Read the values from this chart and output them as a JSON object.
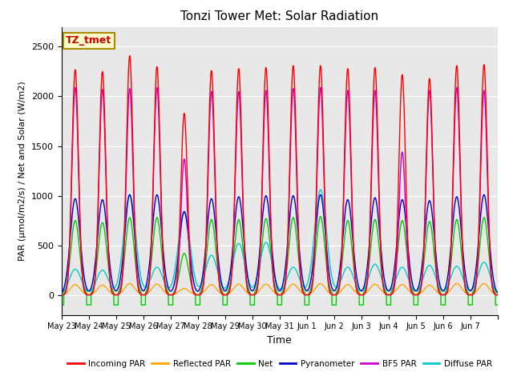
{
  "title": "Tonzi Tower Met: Solar Radiation",
  "ylabel": "PAR (μmol/m2/s) / Net and Solar (W/m2)",
  "xlabel": "Time",
  "ylim": [
    -200,
    2700
  ],
  "bg_color": "#e8e8e8",
  "legend_label": "TZ_tmet",
  "series_colors": {
    "incoming": "#ff0000",
    "reflected": "#ffa500",
    "net": "#00cc00",
    "pyranometer": "#0000cc",
    "bf5": "#cc00cc",
    "diffuse": "#00cccc"
  },
  "legend_entries": [
    "Incoming PAR",
    "Reflected PAR",
    "Net",
    "Pyranometer",
    "BF5 PAR",
    "Diffuse PAR"
  ],
  "legend_colors": [
    "#ff0000",
    "#ffa500",
    "#00cc00",
    "#0000cc",
    "#cc00cc",
    "#00cccc"
  ],
  "n_days": 16,
  "x_labels": [
    "May 23",
    "May 24",
    "May 25",
    "May 26",
    "May 27",
    "May 28",
    "May 29",
    "May 30",
    "May 31",
    "Jun 1",
    "Jun 2",
    "Jun 3",
    "Jun 4",
    "Jun 5",
    "Jun 6",
    "Jun 7"
  ],
  "peak_incoming": [
    2270,
    2250,
    2410,
    2300,
    1830,
    2260,
    2280,
    2290,
    2310,
    2310,
    2280,
    2290,
    2220,
    2180,
    2310,
    2320
  ],
  "peak_bf5": [
    2090,
    2070,
    2080,
    2090,
    1370,
    2050,
    2050,
    2060,
    2080,
    2090,
    2060,
    2060,
    1440,
    2060,
    2090,
    2060
  ],
  "peak_pyranometer": [
    970,
    960,
    1010,
    1010,
    840,
    970,
    990,
    1000,
    1000,
    1010,
    960,
    980,
    960,
    950,
    990,
    1010
  ],
  "peak_net": [
    750,
    730,
    780,
    780,
    420,
    760,
    760,
    770,
    780,
    790,
    750,
    760,
    750,
    740,
    760,
    780
  ],
  "peak_reflected": [
    105,
    100,
    115,
    110,
    65,
    105,
    110,
    110,
    110,
    115,
    105,
    110,
    105,
    100,
    115,
    115
  ],
  "peak_diffuse": [
    260,
    250,
    1010,
    280,
    840,
    400,
    520,
    530,
    280,
    1060,
    280,
    310,
    280,
    300,
    290,
    330
  ],
  "night_net": -100,
  "day_sigma": 0.12,
  "day_sigma_wide": 0.18,
  "day_sigma_net": 0.16,
  "day_sigma_diffuse": 0.22
}
